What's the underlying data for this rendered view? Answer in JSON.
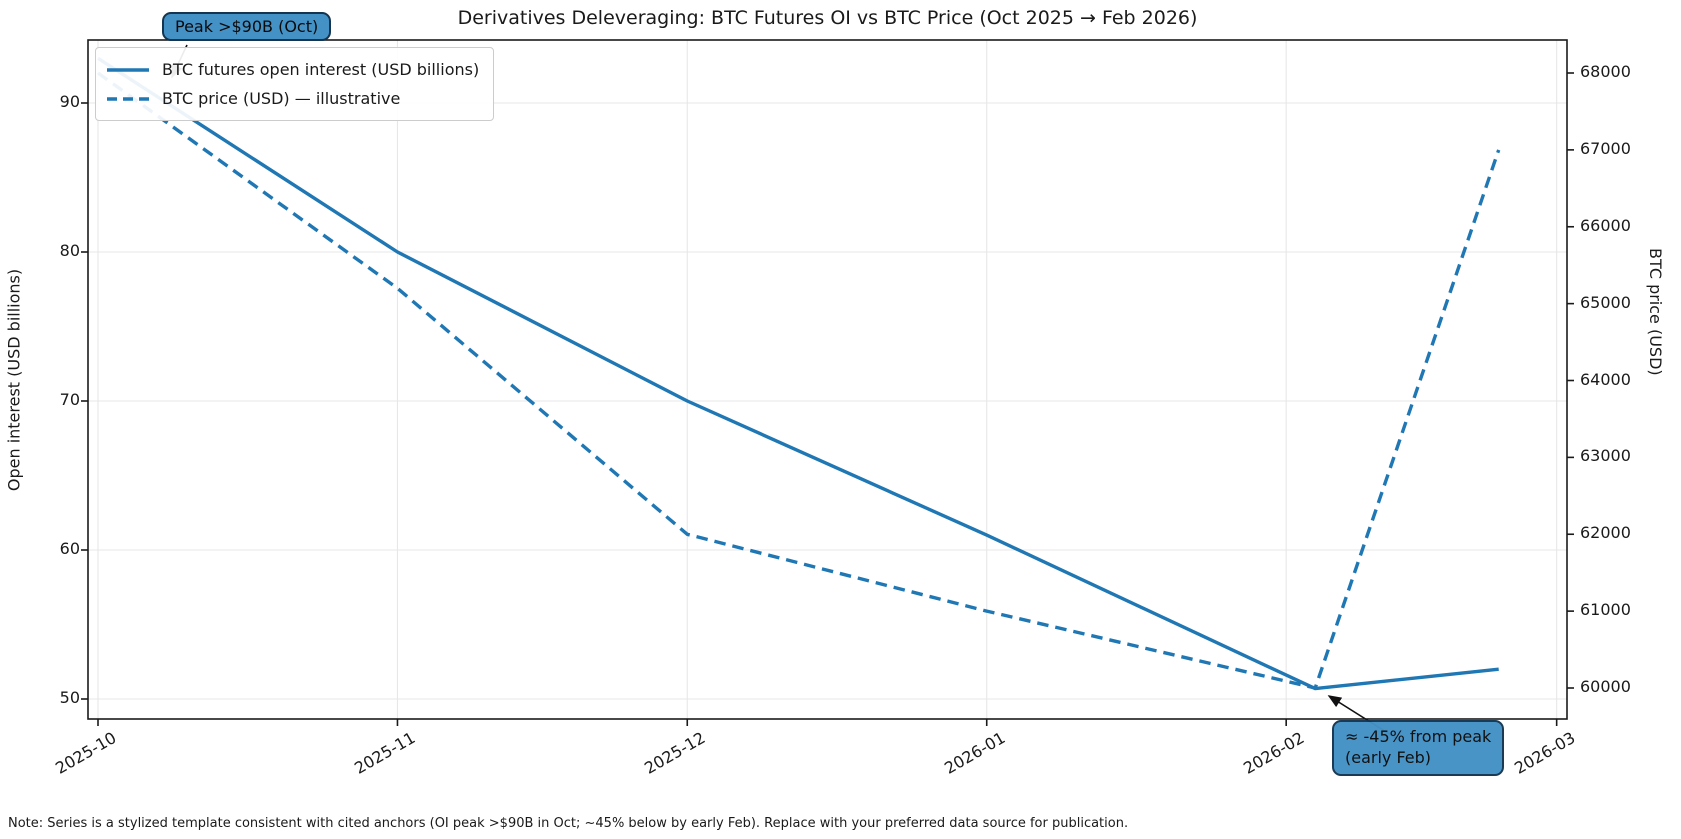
{
  "chart_data": {
    "type": "line",
    "title": "Derivatives Deleveraging: BTC Futures OI vs BTC Price (Oct 2025 → Feb 2026)",
    "x": [
      "2025-10-01",
      "2025-11-01",
      "2025-12-01",
      "2026-01-01",
      "2026-02-04",
      "2026-02-23"
    ],
    "series": [
      {
        "name": "BTC futures open interest (USD billions)",
        "axis": "left",
        "style": "solid",
        "values": [
          93,
          80,
          70,
          61,
          50.7,
          52
        ]
      },
      {
        "name": "BTC price (USD) — illustrative",
        "axis": "right",
        "style": "dashed",
        "values": [
          68000,
          65200,
          62000,
          61000,
          60000,
          67000
        ]
      }
    ],
    "left_axis": {
      "label": "Open interest (USD billions)",
      "ticks": [
        "90",
        "80",
        "70",
        "60",
        "50"
      ],
      "range": [
        48.6,
        94.2
      ]
    },
    "right_axis": {
      "label": "BTC price (USD)",
      "ticks": [
        "68000",
        "67000",
        "66000",
        "65000",
        "64000",
        "63000",
        "62000",
        "61000",
        "60000"
      ],
      "range": [
        59600,
        68430
      ]
    },
    "x_axis": {
      "ticks": [
        "2025-10",
        "2025-11",
        "2025-12",
        "2026-01",
        "2026-02",
        "2026-03"
      ],
      "tick_rotation_deg": 30
    },
    "grid": true,
    "legend_position": "upper left",
    "annotations": {
      "peak": {
        "text": "Peak >$90B (Oct)",
        "points_to": [
          "2025-10-04",
          91
        ]
      },
      "drop": {
        "line1": "≈ -45% from peak",
        "line2": "(early Feb)",
        "points_to": [
          "2026-02-04",
          50.7
        ]
      }
    },
    "colors": {
      "line": "#1f77b4",
      "annotation_fill": "#4491c6",
      "annotation_border": "#14344f",
      "grid": "#e7e7e7",
      "spine": "#1a1a1a"
    },
    "note": "Note: Series is a stylized template consistent with cited anchors (OI peak >$90B in Oct; ~45% below by early Feb). Replace with your preferred data source for publication."
  }
}
